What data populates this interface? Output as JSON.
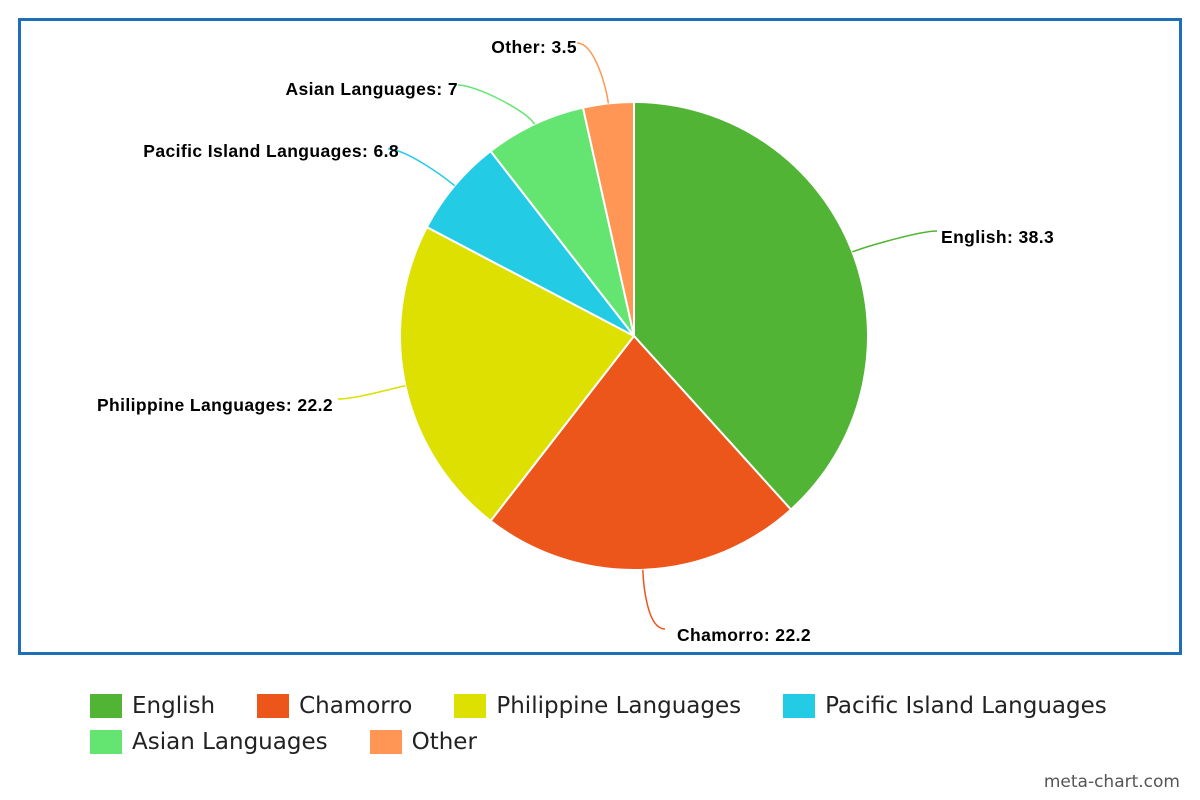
{
  "chart_data": {
    "type": "pie",
    "slices": [
      {
        "label": "English",
        "value": 38.3,
        "color": "#52b434",
        "data_label": "English: 38.3"
      },
      {
        "label": "Chamorro",
        "value": 22.2,
        "color": "#ec561b",
        "data_label": "Chamorro: 22.2"
      },
      {
        "label": "Philippine Languages",
        "value": 22.2,
        "color": "#dde000",
        "data_label": "Philippine Languages: 22.2"
      },
      {
        "label": "Pacific Island Languages",
        "value": 6.8,
        "color": "#24cbe5",
        "data_label": "Pacific Island Languages: 6.8"
      },
      {
        "label": "Asian Languages",
        "value": 7,
        "color": "#64e572",
        "data_label": "Asian Languages: 7"
      },
      {
        "label": "Other",
        "value": 3.5,
        "color": "#ff9655",
        "data_label": "Other: 3.5"
      }
    ],
    "legend_position": "bottom",
    "border_color": "#1f6fb8"
  },
  "watermark": "meta-chart.com"
}
